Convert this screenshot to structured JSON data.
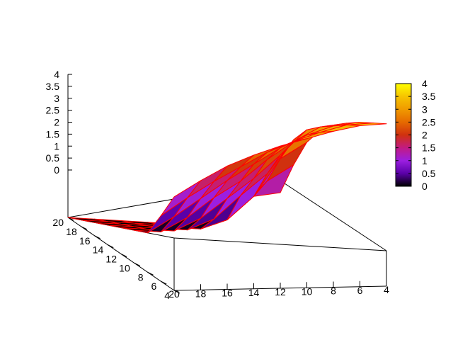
{
  "chart_data": {
    "type": "surface",
    "title": "",
    "xlabel": "",
    "ylabel": "",
    "zlabel": "",
    "x": [
      4,
      6,
      8,
      10,
      12,
      14,
      16,
      18,
      20
    ],
    "y": [
      4,
      6,
      8,
      10,
      12,
      14,
      16,
      18,
      20
    ],
    "x_tick_labels": [
      "4",
      "6",
      "8",
      "10",
      "12",
      "14",
      "16",
      "18",
      "20"
    ],
    "y_tick_labels": [
      "4",
      "6",
      "8",
      "10",
      "12",
      "14",
      "16",
      "18",
      "20"
    ],
    "z_tick_labels": [
      "0",
      "0.5",
      "1",
      "1.5",
      "2",
      "2.5",
      "3",
      "3.5",
      "4"
    ],
    "colorbar_tick_labels": [
      "0",
      "0.5",
      "1",
      "1.5",
      "2",
      "2.5",
      "3",
      "3.5",
      "4"
    ],
    "zlim": [
      0,
      4
    ],
    "z": [
      [
        1.05,
        0.9,
        0.2,
        0,
        0,
        0,
        0,
        0,
        0
      ],
      [
        1.9,
        1.4,
        0.6,
        0.1,
        0,
        0,
        0,
        0,
        0
      ],
      [
        2.6,
        2.1,
        1.0,
        0.3,
        0,
        0,
        0,
        0,
        0
      ],
      [
        3.0,
        2.7,
        1.7,
        1.05,
        0.35,
        0,
        0,
        0,
        0
      ],
      [
        3.2,
        3.05,
        2.3,
        1.6,
        1.0,
        0.4,
        0,
        0,
        0
      ],
      [
        3.35,
        3.2,
        2.75,
        2.2,
        1.55,
        1.05,
        0.45,
        0,
        0
      ],
      [
        3.45,
        3.3,
        3.0,
        2.6,
        2.1,
        1.6,
        1.05,
        0.5,
        0
      ],
      [
        3.5,
        3.4,
        3.15,
        2.85,
        2.5,
        2.05,
        1.6,
        1.1,
        0.55
      ],
      [
        3.55,
        3.45,
        3.25,
        3.0,
        2.75,
        2.45,
        2.1,
        1.65,
        1.15
      ]
    ],
    "palette": [
      "#000000",
      "#5a00a8",
      "#9b1fe0",
      "#c21b83",
      "#d0310f",
      "#e66a00",
      "#f09a00",
      "#f6c400",
      "#ffff00"
    ],
    "grid": false,
    "colorbar": "right"
  }
}
